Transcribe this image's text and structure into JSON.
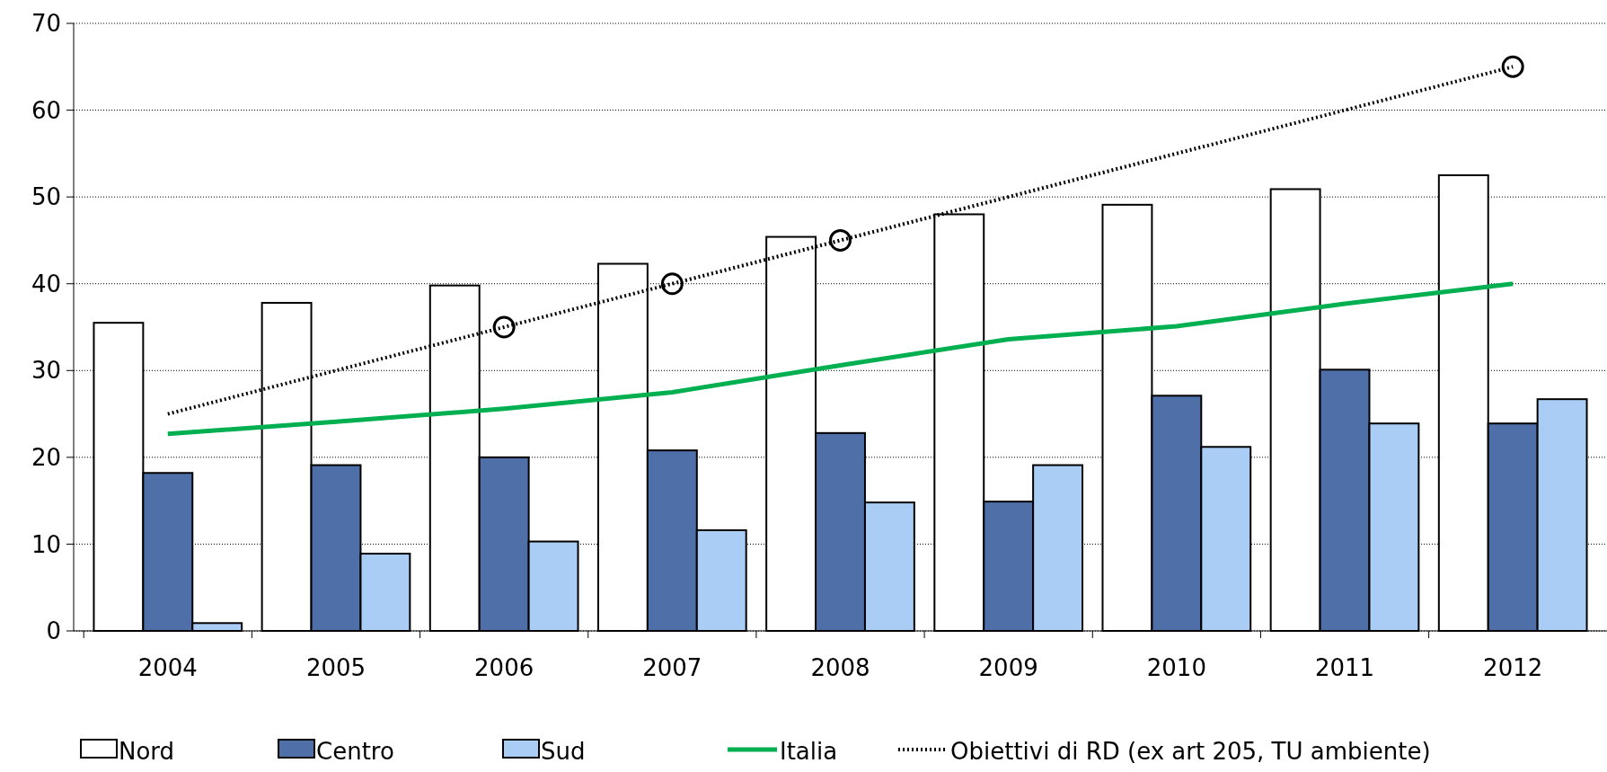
{
  "chart_data": {
    "type": "bar",
    "categories": [
      "2004",
      "2005",
      "2006",
      "2007",
      "2008",
      "2009",
      "2010",
      "2011",
      "2012"
    ],
    "series": [
      {
        "name": "Nord",
        "color": "#ffffff",
        "values": [
          35.5,
          37.8,
          39.8,
          42.3,
          45.4,
          48.0,
          49.1,
          50.9,
          52.5
        ]
      },
      {
        "name": "Centro",
        "color": "#4f6fa8",
        "values": [
          18.2,
          19.1,
          20.0,
          20.8,
          22.8,
          14.9,
          27.1,
          30.1,
          23.9
        ]
      },
      {
        "name": "Sud",
        "color": "#a9cdf5",
        "values": [
          0.9,
          8.9,
          10.3,
          11.6,
          14.8,
          19.1,
          21.2,
          23.9,
          26.7
        ]
      },
      {
        "name": "Italia",
        "type": "line",
        "color": "#00b050",
        "marker": "none",
        "values": [
          22.7,
          24.1,
          25.6,
          27.5,
          30.6,
          33.6,
          35.1,
          37.7,
          40.0
        ]
      },
      {
        "name": "Obiettivi di RD (ex art 205, TU ambiente)",
        "type": "line",
        "color": "#000000",
        "marker": "none",
        "line_style": "dotted",
        "values": [
          25,
          30,
          35,
          40,
          45,
          50,
          55,
          60,
          65
        ]
      },
      {
        "type": "scatter",
        "color": "#000000",
        "marker": "circle",
        "values": [
          null,
          null,
          35,
          40,
          45,
          null,
          null,
          null,
          65
        ]
      }
    ],
    "ylim": [
      0,
      70
    ],
    "yticks": [
      0,
      10,
      20,
      30,
      40,
      50,
      60,
      70
    ],
    "grid": "y",
    "legend": "bottom"
  }
}
